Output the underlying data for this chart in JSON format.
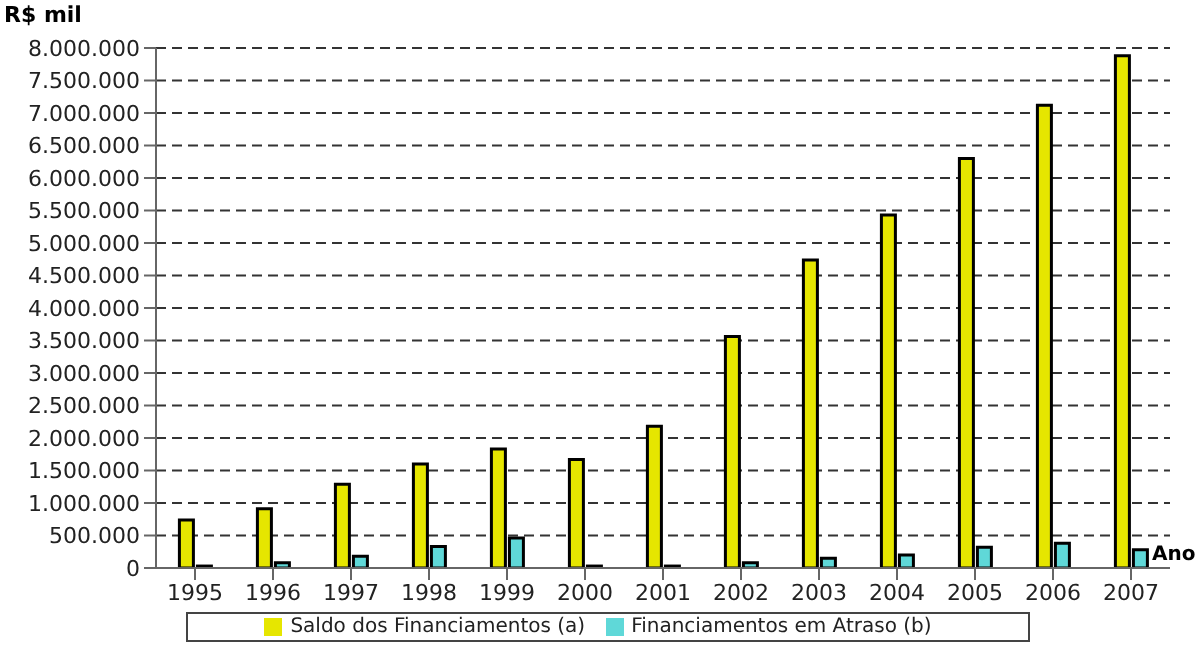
{
  "chart_data": {
    "type": "bar",
    "ylabel": "R$ mil",
    "xlabel": "Ano",
    "categories": [
      "1995",
      "1996",
      "1997",
      "1998",
      "1999",
      "2000",
      "2001",
      "2002",
      "2003",
      "2004",
      "2005",
      "2006",
      "2007"
    ],
    "series": [
      {
        "name": "Saldo dos Financiamentos (a)",
        "color": "#e6e600",
        "values": [
          740000,
          910000,
          1290000,
          1600000,
          1830000,
          1670000,
          2180000,
          3560000,
          4740000,
          5430000,
          6300000,
          7120000,
          7880000
        ]
      },
      {
        "name": "Financiamentos em Atraso (b)",
        "color": "#5fd8d8",
        "values": [
          30000,
          80000,
          180000,
          330000,
          460000,
          30000,
          30000,
          80000,
          150000,
          200000,
          320000,
          380000,
          280000
        ]
      }
    ],
    "ylim": [
      0,
      8000000
    ],
    "yticks": [
      {
        "value": 0,
        "label": "0"
      },
      {
        "value": 500000,
        "label": "500.000"
      },
      {
        "value": 1000000,
        "label": "1.000.000"
      },
      {
        "value": 1500000,
        "label": "1.500.000"
      },
      {
        "value": 2000000,
        "label": "2.000.000"
      },
      {
        "value": 2500000,
        "label": "2.500.000"
      },
      {
        "value": 3000000,
        "label": "3.000.000"
      },
      {
        "value": 3500000,
        "label": "3.500.000"
      },
      {
        "value": 4000000,
        "label": "4.000.000"
      },
      {
        "value": 4500000,
        "label": "4.500.000"
      },
      {
        "value": 5000000,
        "label": "5.000.000"
      },
      {
        "value": 5500000,
        "label": "5.500.000"
      },
      {
        "value": 6000000,
        "label": "6.000.000"
      },
      {
        "value": 6500000,
        "label": "6.500.000"
      },
      {
        "value": 7000000,
        "label": "7.000.000"
      },
      {
        "value": 7500000,
        "label": "7.500.000"
      },
      {
        "value": 8000000,
        "label": "8.000.000"
      }
    ],
    "grid": "y",
    "legend": "bottom"
  }
}
